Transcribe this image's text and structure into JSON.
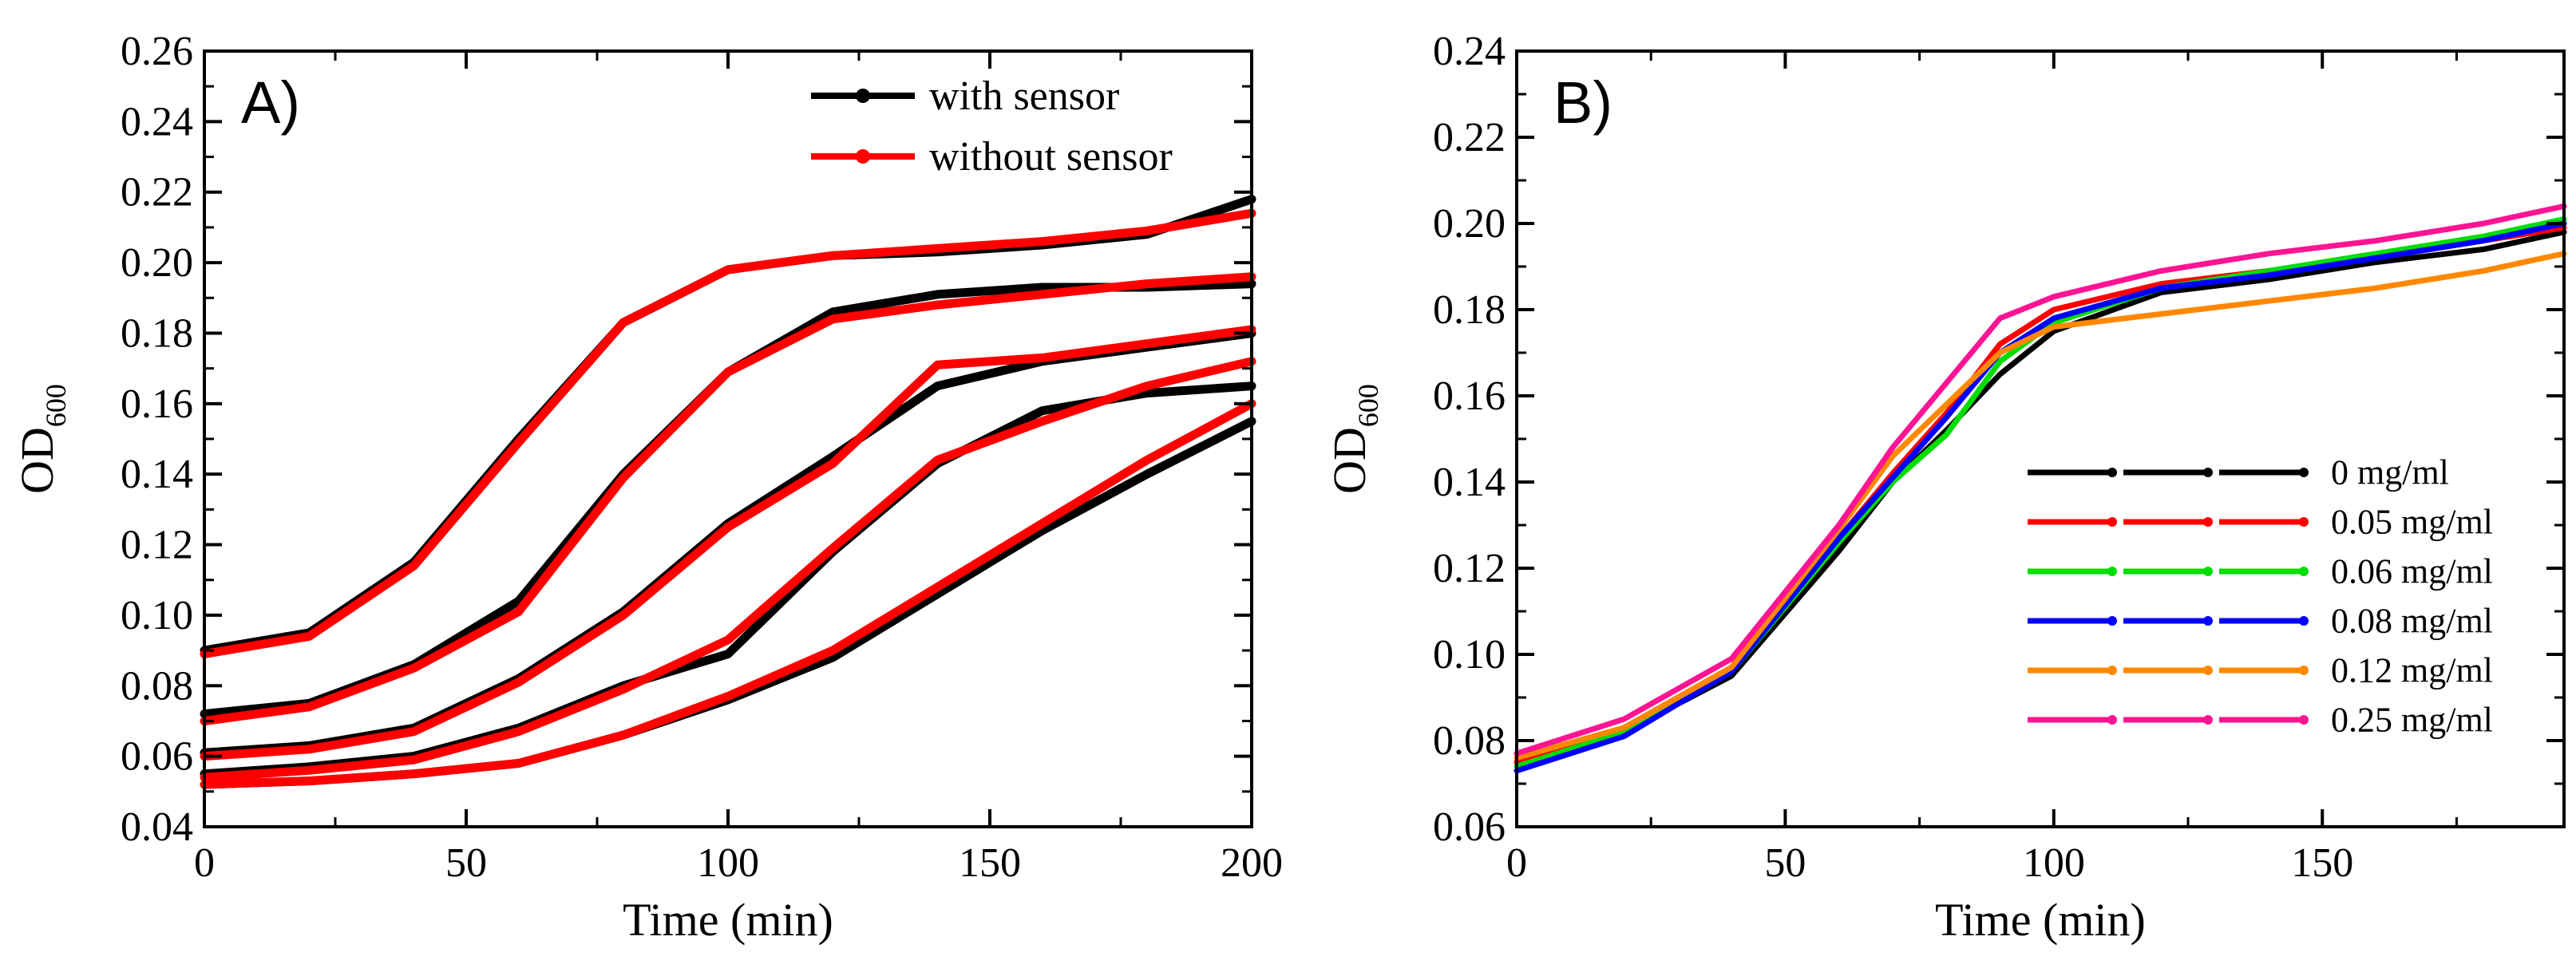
{
  "chart_data": [
    {
      "panel_label": "A)",
      "type": "line",
      "xlabel": "Time (min)",
      "ylabel_main": "OD",
      "ylabel_sub": "600",
      "xlim": [
        0,
        200
      ],
      "ylim": [
        0.04,
        0.26
      ],
      "xticks": [
        0,
        50,
        100,
        150,
        200
      ],
      "xtick_labels": [
        "0",
        "50",
        "100",
        "150",
        "200"
      ],
      "yticks": [
        0.04,
        0.06,
        0.08,
        0.1,
        0.12,
        0.14,
        0.16,
        0.18,
        0.2,
        0.22,
        0.24,
        0.26
      ],
      "ytick_labels": [
        "0.04",
        "0.06",
        "0.08",
        "0.10",
        "0.12",
        "0.14",
        "0.16",
        "0.18",
        "0.20",
        "0.22",
        "0.24",
        "0.26"
      ],
      "legend_position": "top-right",
      "legend": [
        {
          "label": "with sensor",
          "color": "#000000"
        },
        {
          "label": "without sensor",
          "color": "#ff0000"
        }
      ],
      "series": [
        {
          "name": "with sensor",
          "color": "#000000",
          "x": [
            0,
            20,
            40,
            60,
            80,
            100,
            120,
            140,
            160,
            180,
            200
          ],
          "y": [
            0.09,
            0.095,
            0.115,
            0.15,
            0.183,
            0.198,
            0.202,
            0.203,
            0.205,
            0.208,
            0.218
          ]
        },
        {
          "name": "without sensor",
          "color": "#ff0000",
          "x": [
            0,
            20,
            40,
            60,
            80,
            100,
            120,
            140,
            160,
            180,
            200
          ],
          "y": [
            0.089,
            0.094,
            0.114,
            0.149,
            0.183,
            0.198,
            0.202,
            0.204,
            0.206,
            0.209,
            0.214
          ]
        },
        {
          "name": "with sensor",
          "color": "#000000",
          "x": [
            0,
            20,
            40,
            60,
            80,
            100,
            120,
            140,
            160,
            180,
            200
          ],
          "y": [
            0.072,
            0.075,
            0.086,
            0.104,
            0.14,
            0.169,
            0.186,
            0.191,
            0.193,
            0.193,
            0.194
          ]
        },
        {
          "name": "without sensor",
          "color": "#ff0000",
          "x": [
            0,
            20,
            40,
            60,
            80,
            100,
            120,
            140,
            160,
            180,
            200
          ],
          "y": [
            0.07,
            0.074,
            0.085,
            0.101,
            0.139,
            0.169,
            0.184,
            0.188,
            0.191,
            0.194,
            0.196
          ]
        },
        {
          "name": "with sensor",
          "color": "#000000",
          "x": [
            0,
            20,
            40,
            60,
            80,
            100,
            120,
            140,
            160,
            180,
            200
          ],
          "y": [
            0.061,
            0.063,
            0.068,
            0.082,
            0.101,
            0.126,
            0.145,
            0.165,
            0.172,
            0.176,
            0.18
          ]
        },
        {
          "name": "without sensor",
          "color": "#ff0000",
          "x": [
            0,
            20,
            40,
            60,
            80,
            100,
            120,
            140,
            160,
            180,
            200
          ],
          "y": [
            0.06,
            0.062,
            0.067,
            0.081,
            0.1,
            0.125,
            0.143,
            0.171,
            0.173,
            0.177,
            0.181
          ]
        },
        {
          "name": "with sensor",
          "color": "#000000",
          "x": [
            0,
            20,
            40,
            60,
            80,
            100,
            120,
            140,
            160,
            180,
            200
          ],
          "y": [
            0.055,
            0.057,
            0.06,
            0.068,
            0.08,
            0.089,
            0.118,
            0.143,
            0.158,
            0.163,
            0.165
          ]
        },
        {
          "name": "without sensor",
          "color": "#ff0000",
          "x": [
            0,
            20,
            40,
            60,
            80,
            100,
            120,
            140,
            160,
            180,
            200
          ],
          "y": [
            0.054,
            0.056,
            0.059,
            0.067,
            0.079,
            0.093,
            0.119,
            0.144,
            0.155,
            0.165,
            0.172
          ]
        },
        {
          "name": "with sensor",
          "color": "#000000",
          "x": [
            0,
            20,
            40,
            60,
            80,
            100,
            120,
            140,
            160,
            180,
            200
          ],
          "y": [
            0.052,
            0.053,
            0.055,
            0.058,
            0.066,
            0.076,
            0.088,
            0.106,
            0.124,
            0.14,
            0.155
          ]
        },
        {
          "name": "without sensor",
          "color": "#ff0000",
          "x": [
            0,
            20,
            40,
            60,
            80,
            100,
            120,
            140,
            160,
            180,
            200
          ],
          "y": [
            0.052,
            0.053,
            0.055,
            0.058,
            0.066,
            0.077,
            0.09,
            0.108,
            0.126,
            0.144,
            0.16
          ]
        }
      ]
    },
    {
      "panel_label": "B)",
      "type": "line",
      "xlabel": "Time (min)",
      "ylabel_main": "OD",
      "ylabel_sub": "600",
      "xlim": [
        0,
        195
      ],
      "ylim": [
        0.06,
        0.24
      ],
      "xticks": [
        0,
        50,
        100,
        150
      ],
      "xtick_labels": [
        "0",
        "50",
        "100",
        "150"
      ],
      "yticks": [
        0.06,
        0.08,
        0.1,
        0.12,
        0.14,
        0.16,
        0.18,
        0.2,
        0.22,
        0.24
      ],
      "ytick_labels": [
        "0.06",
        "0.08",
        "0.10",
        "0.12",
        "0.14",
        "0.16",
        "0.18",
        "0.20",
        "0.22",
        "0.24"
      ],
      "legend_position": "center-right",
      "legend": [
        {
          "label": "0 mg/ml",
          "color": "#000000"
        },
        {
          "label": "0.05 mg/ml",
          "color": "#ff0000"
        },
        {
          "label": "0.06 mg/ml",
          "color": "#00dd00"
        },
        {
          "label": "0.08 mg/ml",
          "color": "#0000ff"
        },
        {
          "label": "0.12 mg/ml",
          "color": "#ff8800"
        },
        {
          "label": "0.25 mg/ml",
          "color": "#ff1493"
        }
      ],
      "series": [
        {
          "name": "0 mg/ml",
          "color": "#000000",
          "x": [
            0,
            20,
            40,
            60,
            70,
            80,
            90,
            100,
            120,
            140,
            160,
            180,
            195
          ],
          "y": [
            0.075,
            0.082,
            0.095,
            0.124,
            0.14,
            0.152,
            0.165,
            0.175,
            0.184,
            0.187,
            0.191,
            0.194,
            0.198
          ]
        },
        {
          "name": "0.05 mg/ml",
          "color": "#ff0000",
          "x": [
            0,
            20,
            40,
            60,
            70,
            80,
            90,
            100,
            120,
            140,
            160,
            180,
            195
          ],
          "y": [
            0.075,
            0.083,
            0.097,
            0.127,
            0.142,
            0.156,
            0.172,
            0.18,
            0.186,
            0.189,
            0.192,
            0.196,
            0.199
          ]
        },
        {
          "name": "0.06 mg/ml",
          "color": "#00dd00",
          "x": [
            0,
            20,
            40,
            60,
            70,
            80,
            90,
            100,
            120,
            140,
            160,
            180,
            195
          ],
          "y": [
            0.074,
            0.082,
            0.096,
            0.126,
            0.14,
            0.151,
            0.168,
            0.177,
            0.185,
            0.189,
            0.193,
            0.197,
            0.201
          ]
        },
        {
          "name": "0.08 mg/ml",
          "color": "#0000ff",
          "x": [
            0,
            20,
            40,
            60,
            70,
            80,
            90,
            100,
            120,
            140,
            160,
            180,
            195
          ],
          "y": [
            0.073,
            0.081,
            0.096,
            0.127,
            0.141,
            0.155,
            0.17,
            0.178,
            0.185,
            0.188,
            0.192,
            0.196,
            0.2
          ]
        },
        {
          "name": "0.12 mg/ml",
          "color": "#ff8800",
          "x": [
            0,
            20,
            40,
            60,
            70,
            80,
            90,
            100,
            120,
            140,
            160,
            180,
            195
          ],
          "y": [
            0.076,
            0.083,
            0.097,
            0.129,
            0.146,
            0.158,
            0.17,
            0.176,
            0.179,
            0.182,
            0.185,
            0.189,
            0.193
          ]
        },
        {
          "name": "0.25 mg/ml",
          "color": "#ff1493",
          "x": [
            0,
            20,
            40,
            60,
            70,
            80,
            90,
            100,
            120,
            140,
            160,
            180,
            195
          ],
          "y": [
            0.077,
            0.085,
            0.099,
            0.13,
            0.148,
            0.163,
            0.178,
            0.183,
            0.189,
            0.193,
            0.196,
            0.2,
            0.204
          ]
        }
      ]
    }
  ]
}
